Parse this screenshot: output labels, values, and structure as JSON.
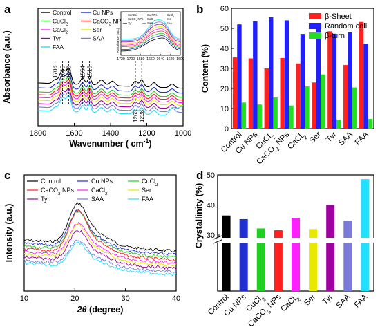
{
  "panels": {
    "a": {
      "letter": "a",
      "xlabel": "Wavenumber ( cm",
      "xlabel_sup": "-1",
      "xlabel_end": ")",
      "ylabel": "Absorbance (a.u.)"
    },
    "b": {
      "letter": "b",
      "ylabel": "Content (%)"
    },
    "c": {
      "letter": "c",
      "xlabel": "2θ (degree)",
      "ylabel": "Intensity (a.u.)"
    },
    "d": {
      "letter": "d",
      "ylabel": "Crystallinity (%)"
    }
  },
  "sample_colors": {
    "Control": "#000000",
    "Cu NPs": "#2030d0",
    "CuCl2": "#20d020",
    "CaCO3 NPs": "#ff2020",
    "CaCl2": "#ff20ff",
    "Ser": "#e8e800",
    "Tyr": "#a000a0",
    "SAA": "#7a7ad8",
    "FAA": "#20e0ff"
  },
  "chart_data": [
    {
      "panel": "a",
      "type": "line",
      "xlabel": "Wavenumber ( cm-1)",
      "ylabel": "Absorbance (a.u.)",
      "xlim": [
        1800,
        1000
      ],
      "x_reversed": true,
      "xticks": [
        "1800",
        "1600",
        "1400",
        "1200",
        "1000"
      ],
      "legend": [
        "Control",
        "Cu NPs",
        "CuCl2",
        "CaCO3 NPs",
        "CaCl2",
        "Ser",
        "Tyr",
        "SAA",
        "FAA"
      ],
      "legend_position": "top-left",
      "peak_markers": [
        {
          "x": 1706,
          "label": "1706"
        },
        {
          "x": 1665,
          "label": "1665"
        },
        {
          "x": 1630,
          "label": "1630"
        },
        {
          "x": 1554,
          "label": "1554"
        },
        {
          "x": 1516,
          "label": "1516"
        },
        {
          "x": 1263,
          "label": "1263"
        },
        {
          "x": 1228,
          "label": "1228"
        }
      ],
      "inset": {
        "xlim": [
          1720,
          1600
        ],
        "xticks": [
          "1720",
          "1700",
          "1680",
          "1660",
          "1640",
          "1620",
          "1600"
        ],
        "ylabel": "Absorbance (a.u.)",
        "legend": [
          "Control",
          "Cu NPs",
          "CuCl2",
          "CaCO3 NPs",
          "CaCl2",
          "Ser",
          "Tyr",
          "SAA",
          "FAA"
        ]
      }
    },
    {
      "panel": "b",
      "type": "bar",
      "ylabel": "Content (%)",
      "ylim": [
        0,
        60
      ],
      "yticks": [
        "0",
        "10",
        "20",
        "30",
        "40",
        "50",
        "60"
      ],
      "categories": [
        "Control",
        "Cu NPs",
        "CuCl2",
        "CaCO3 NPs",
        "CaCl2",
        "Ser",
        "Tyr",
        "SAA",
        "FAA"
      ],
      "legend_position": "top-right",
      "series": [
        {
          "name": "β-Sheet",
          "color": "#ff2020",
          "values": [
            35.5,
            35.0,
            30.0,
            35.2,
            32.5,
            23.0,
            48.5,
            31.7,
            53.2
          ]
        },
        {
          "name": "Random coil",
          "color": "#2020ff",
          "values": [
            52.0,
            53.5,
            55.5,
            54.0,
            47.2,
            50.5,
            47.3,
            48.0,
            42.3
          ]
        },
        {
          "name": "β-turn",
          "color": "#20e020",
          "values": [
            13.0,
            12.0,
            15.5,
            11.5,
            21.0,
            27.0,
            4.5,
            20.5,
            4.8
          ]
        }
      ]
    },
    {
      "panel": "c",
      "type": "line",
      "xlabel": "2θ (degree)",
      "ylabel": "Intensity (a.u.)",
      "xlim": [
        10,
        40
      ],
      "xticks": [
        "10",
        "20",
        "30",
        "40"
      ],
      "legend": [
        "Control",
        "Cu NPs",
        "CuCl2",
        "CaCO3 NPs",
        "CaCl2",
        "Ser",
        "Tyr",
        "SAA",
        "FAA"
      ],
      "legend_position": "top",
      "peak_x": 20.5
    },
    {
      "panel": "d",
      "type": "bar",
      "ylabel": "Crystallinity (%)",
      "ylim": [
        0,
        50
      ],
      "axis_break": true,
      "yticks": [
        "30",
        "40",
        "50"
      ],
      "categories": [
        "Control",
        "Cu NPs",
        "CuCl2",
        "CaCO3 NPs",
        "CaCl2",
        "Ser",
        "Tyr",
        "SAA",
        "FAA"
      ],
      "values": [
        36.5,
        35.3,
        32.2,
        31.6,
        35.7,
        32.0,
        40.0,
        34.8,
        48.6
      ]
    }
  ]
}
